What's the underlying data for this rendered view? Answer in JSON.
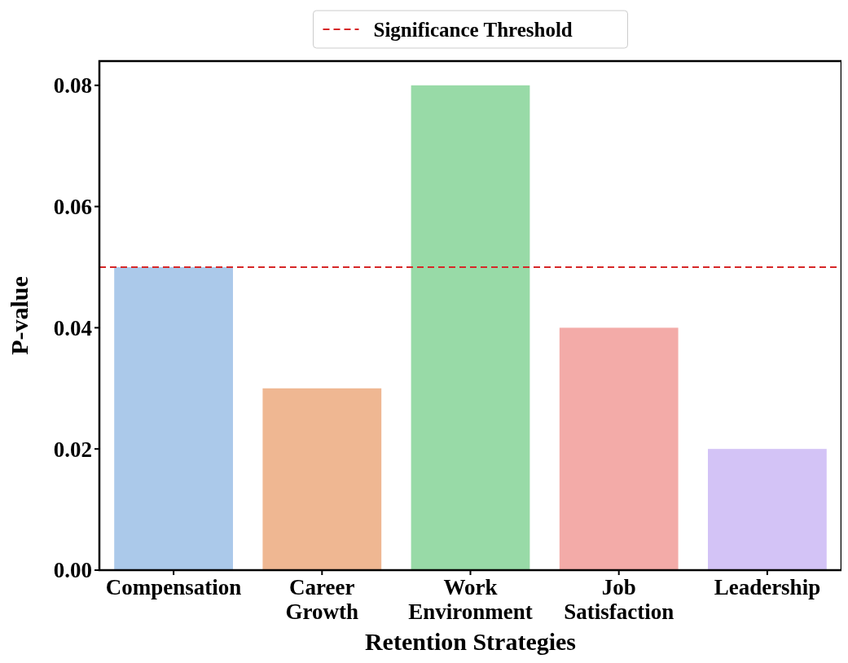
{
  "chart_data": {
    "type": "bar",
    "xlabel": "Retention Strategies",
    "ylabel": "P-value",
    "categories": [
      "Compensation",
      "Career Growth",
      "Work Environment",
      "Job Satisfaction",
      "Leadership"
    ],
    "values": [
      0.05,
      0.03,
      0.08,
      0.04,
      0.02
    ],
    "colors": [
      "#abc9ea",
      "#efb792",
      "#98daa7",
      "#f3aba8",
      "#d3c3f6"
    ],
    "ylim": [
      0,
      0.084
    ],
    "yticks": [
      {
        "value": 0,
        "label": "0.00"
      },
      {
        "value": 0.02,
        "label": "0.02"
      },
      {
        "value": 0.04,
        "label": "0.04"
      },
      {
        "value": 0.06,
        "label": "0.06"
      },
      {
        "value": 0.08,
        "label": "0.08"
      }
    ],
    "ref_lines": [
      {
        "axis": "y",
        "value": 0.05,
        "label": "Significance Threshold",
        "color": "#d62728",
        "line_style": "dashed"
      }
    ],
    "legend": "top",
    "grid": false
  }
}
